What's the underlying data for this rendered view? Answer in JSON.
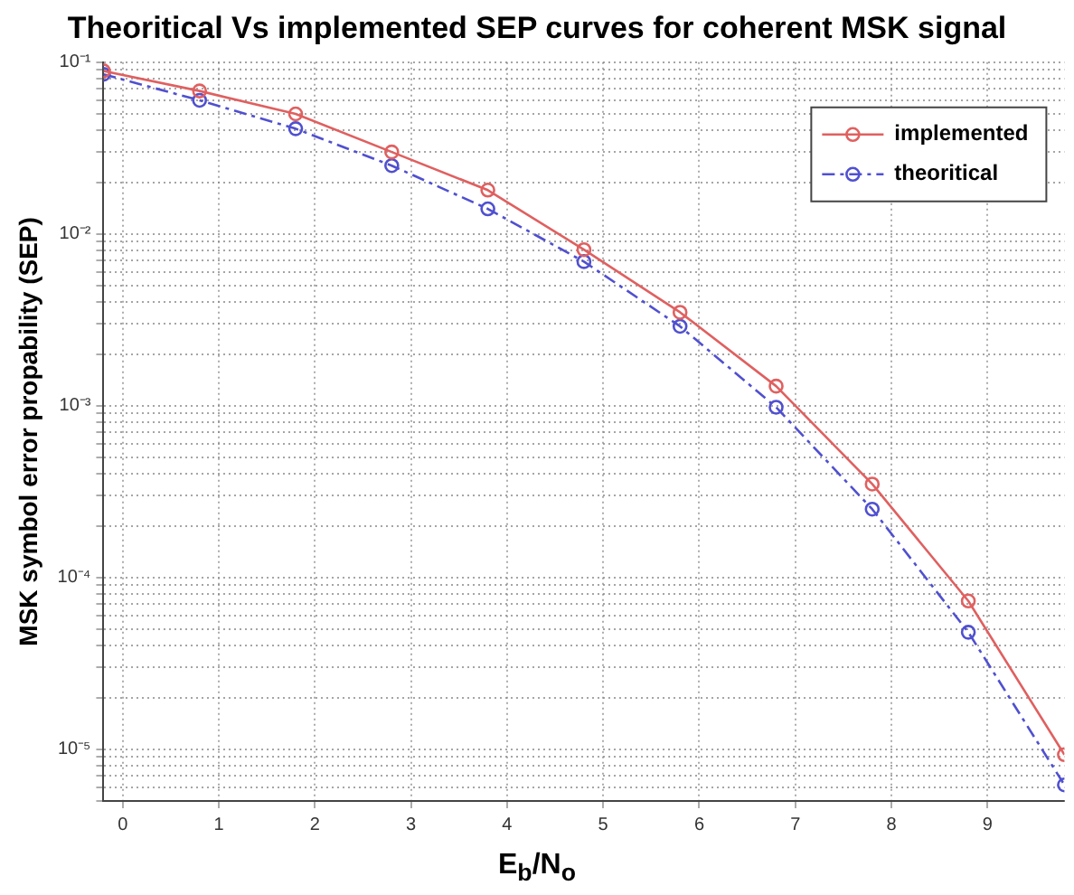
{
  "chart_data": {
    "type": "line",
    "title": "Theoritical Vs implemented SEP curves for coherent MSK signal",
    "xlabel": "E$_{b}$/N$_{o}$",
    "ylabel": "MSK symbol error propability (SEP)",
    "x": [
      -0.2,
      0.8,
      1.8,
      2.8,
      3.8,
      4.8,
      5.8,
      6.8,
      7.8,
      8.8,
      9.8
    ],
    "series": [
      {
        "name": "implemented",
        "color": "#e06060",
        "line_style": "solid",
        "values": [
          0.089,
          0.068,
          0.05,
          0.03,
          0.018,
          0.0081,
          0.0035,
          0.0013,
          0.00035,
          7.3e-05,
          9.3e-06
        ]
      },
      {
        "name": "theoritical",
        "color": "#5050d0",
        "line_style": "dashed",
        "values": [
          0.085,
          0.06,
          0.041,
          0.025,
          0.014,
          0.0069,
          0.0029,
          0.00098,
          0.00025,
          4.8e-05,
          6.2e-06
        ]
      }
    ],
    "xlim": [
      -0.2,
      9.8
    ],
    "xticks": [
      0,
      1,
      2,
      3,
      4,
      5,
      6,
      7,
      8,
      9
    ],
    "ylim": [
      5e-06,
      0.1
    ],
    "log": true,
    "yticks": [
      {
        "value": 5e-06,
        "label": null
      },
      {
        "value": 6e-06,
        "label": null
      },
      {
        "value": 7e-06,
        "label": null
      },
      {
        "value": 8e-06,
        "label": null
      },
      {
        "value": 9e-06,
        "label": null
      },
      {
        "value": 1e-05,
        "label": "10⁻⁵"
      },
      {
        "value": 2e-05,
        "label": null
      },
      {
        "value": 3e-05,
        "label": null
      },
      {
        "value": 4e-05,
        "label": null
      },
      {
        "value": 5e-05,
        "label": null
      },
      {
        "value": 6e-05,
        "label": null
      },
      {
        "value": 7e-05,
        "label": null
      },
      {
        "value": 8e-05,
        "label": null
      },
      {
        "value": 9e-05,
        "label": null
      },
      {
        "value": 0.0001,
        "label": "10⁻⁴"
      },
      {
        "value": 0.0002,
        "label": null
      },
      {
        "value": 0.0003,
        "label": null
      },
      {
        "value": 0.0004,
        "label": null
      },
      {
        "value": 0.0005,
        "label": null
      },
      {
        "value": 0.0006,
        "label": null
      },
      {
        "value": 0.0007,
        "label": null
      },
      {
        "value": 0.0008,
        "label": null
      },
      {
        "value": 0.0009,
        "label": null
      },
      {
        "value": 0.001,
        "label": "10⁻³"
      },
      {
        "value": 0.002,
        "label": null
      },
      {
        "value": 0.003,
        "label": null
      },
      {
        "value": 0.004,
        "label": null
      },
      {
        "value": 0.005,
        "label": null
      },
      {
        "value": 0.006,
        "label": null
      },
      {
        "value": 0.007,
        "label": null
      },
      {
        "value": 0.008,
        "label": null
      },
      {
        "value": 0.009,
        "label": null
      },
      {
        "value": 0.01,
        "label": "10⁻²"
      },
      {
        "value": 0.02,
        "label": null
      },
      {
        "value": 0.03,
        "label": null
      },
      {
        "value": 0.04,
        "label": null
      },
      {
        "value": 0.05,
        "label": null
      },
      {
        "value": 0.06,
        "label": null
      },
      {
        "value": 0.07,
        "label": null
      },
      {
        "value": 0.08,
        "label": null
      },
      {
        "value": 0.09,
        "label": null
      },
      {
        "value": 0.1,
        "label": "10⁻¹"
      }
    ],
    "grid": true,
    "legend": "top right",
    "marker": "circle"
  }
}
